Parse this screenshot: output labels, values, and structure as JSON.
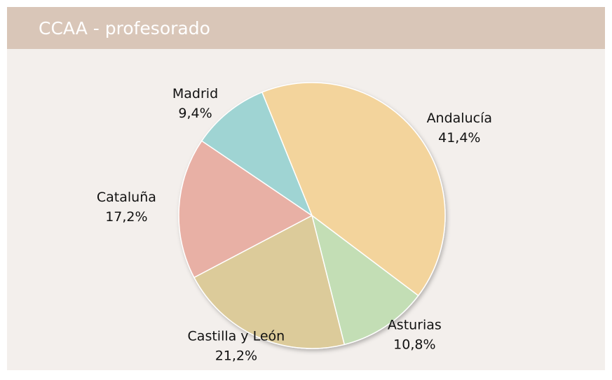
{
  "chart_data": {
    "type": "pie",
    "title": "CCAA - profesorado",
    "categories": [
      "Andalucía",
      "Asturias",
      "Castilla y León",
      "Cataluña",
      "Madrid"
    ],
    "values": [
      41.4,
      10.8,
      21.2,
      17.2,
      9.4
    ],
    "value_labels": [
      "41,4%",
      "10,8%",
      "21,2%",
      "17,2%",
      "9,4%"
    ],
    "colors": [
      "#f3d49c",
      "#c3deb5",
      "#dccb9a",
      "#e8b0a5",
      "#9fd4d3"
    ]
  }
}
